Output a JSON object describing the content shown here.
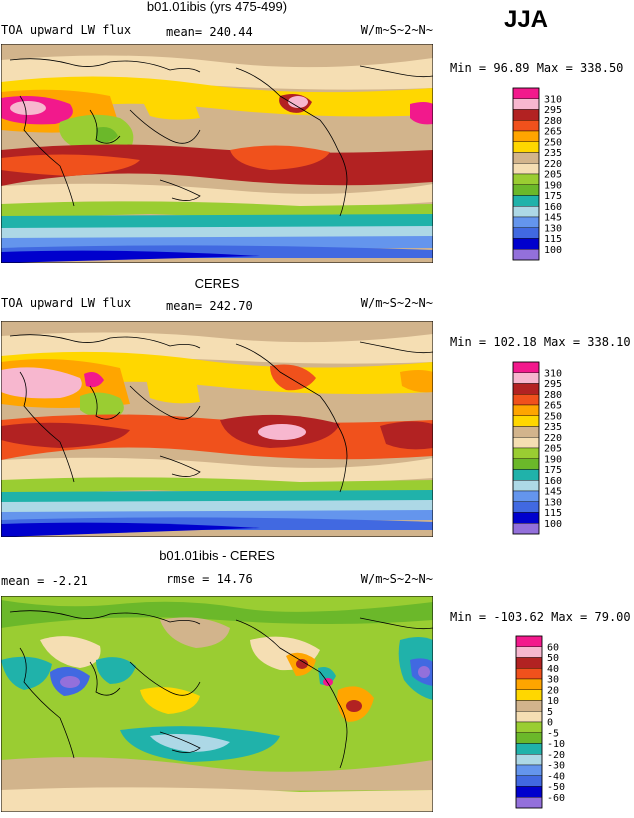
{
  "season": "JJA",
  "panels": [
    {
      "id": "model",
      "title": "b01.01ibis (yrs 475-499)",
      "left_label": "TOA upward LW flux",
      "mean_text": "mean= 240.44",
      "rmse_text": "",
      "units": "W/m~S~2~N~",
      "minmax": "Min =  96.89 Max = 338.50",
      "legend": [
        "310",
        "295",
        "280",
        "265",
        "250",
        "235",
        "220",
        "205",
        "190",
        "175",
        "160",
        "145",
        "130",
        "115",
        "100"
      ],
      "legend_colors": [
        "#f2198c",
        "#f7b7cf",
        "#b22222",
        "#f0511c",
        "#ffa500",
        "#ffd700",
        "#d2b48c",
        "#f5deb3",
        "#9acd32",
        "#6bb82a",
        "#20b2aa",
        "#add8e6",
        "#6495ed",
        "#4169e1",
        "#0000cd",
        "#9370db"
      ]
    },
    {
      "id": "obs",
      "title": "CERES",
      "left_label": "TOA upward LW flux",
      "mean_text": "mean= 242.70",
      "rmse_text": "",
      "units": "W/m~S~2~N~",
      "minmax": "Min = 102.18 Max = 338.10",
      "legend": [
        "310",
        "295",
        "280",
        "265",
        "250",
        "235",
        "220",
        "205",
        "190",
        "175",
        "160",
        "145",
        "130",
        "115",
        "100"
      ],
      "legend_colors": [
        "#f2198c",
        "#f7b7cf",
        "#b22222",
        "#f0511c",
        "#ffa500",
        "#ffd700",
        "#d2b48c",
        "#f5deb3",
        "#9acd32",
        "#6bb82a",
        "#20b2aa",
        "#add8e6",
        "#6495ed",
        "#4169e1",
        "#0000cd",
        "#9370db"
      ]
    },
    {
      "id": "diff",
      "title": "b01.01ibis - CERES",
      "left_label": "mean =  -2.21",
      "mean_text": "",
      "rmse_text": "rmse =  14.76",
      "units": "W/m~S~2~N~",
      "minmax": "Min = -103.62 Max =  79.00",
      "legend": [
        "60",
        "50",
        "40",
        "30",
        "20",
        "10",
        "5",
        "0",
        "-5",
        "-10",
        "-20",
        "-30",
        "-40",
        "-50",
        "-60"
      ],
      "legend_colors": [
        "#f2198c",
        "#f7b7cf",
        "#b22222",
        "#f0511c",
        "#ffa500",
        "#ffd700",
        "#d2b48c",
        "#f5deb3",
        "#9acd32",
        "#6bb82a",
        "#20b2aa",
        "#add8e6",
        "#6495ed",
        "#4169e1",
        "#0000cd",
        "#9370db"
      ]
    }
  ]
}
